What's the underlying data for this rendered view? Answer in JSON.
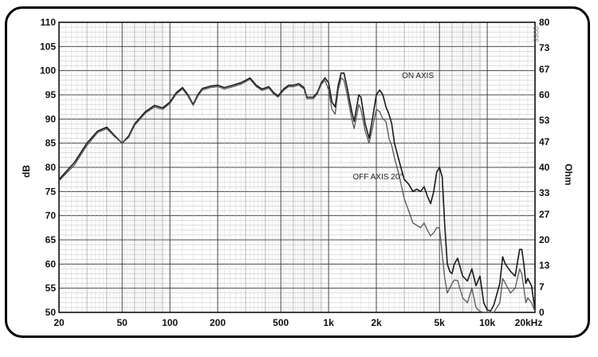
{
  "chart_data": {
    "type": "line",
    "x_scale": "log",
    "grid": true,
    "xlim": [
      20,
      20000
    ],
    "ylim": [
      50,
      110
    ],
    "y2lim": [
      0,
      80
    ],
    "ylabel": "dB",
    "y2label": "Ohm",
    "stamp": "0066",
    "x_ticks": [
      {
        "value": 20,
        "label": "20"
      },
      {
        "value": 50,
        "label": "50"
      },
      {
        "value": 100,
        "label": "100"
      },
      {
        "value": 200,
        "label": "200"
      },
      {
        "value": 500,
        "label": "500"
      },
      {
        "value": 1000,
        "label": "1k"
      },
      {
        "value": 2000,
        "label": "2k"
      },
      {
        "value": 5000,
        "label": "5k"
      },
      {
        "value": 10000,
        "label": "10k"
      },
      {
        "value": 20000,
        "label": "20kHz"
      }
    ],
    "y_ticks": [
      {
        "value": 110,
        "label": "110"
      },
      {
        "value": 105,
        "label": "105"
      },
      {
        "value": 100,
        "label": "100"
      },
      {
        "value": 95,
        "label": "95"
      },
      {
        "value": 90,
        "label": "90"
      },
      {
        "value": 85,
        "label": "85"
      },
      {
        "value": 80,
        "label": "80"
      },
      {
        "value": 75,
        "label": "75"
      },
      {
        "value": 70,
        "label": "70"
      },
      {
        "value": 65,
        "label": "65"
      },
      {
        "value": 60,
        "label": "60"
      },
      {
        "value": 55,
        "label": "55"
      },
      {
        "value": 50,
        "label": "50"
      }
    ],
    "y2_ticks": [
      {
        "value": 80,
        "label": "80"
      },
      {
        "value": 73,
        "label": "73"
      },
      {
        "value": 67,
        "label": "67"
      },
      {
        "value": 60,
        "label": "60"
      },
      {
        "value": 53,
        "label": "53"
      },
      {
        "value": 47,
        "label": "47"
      },
      {
        "value": 40,
        "label": "40"
      },
      {
        "value": 33,
        "label": "33"
      },
      {
        "value": 27,
        "label": "27"
      },
      {
        "value": 20,
        "label": "20"
      },
      {
        "value": 13,
        "label": "13"
      },
      {
        "value": 7,
        "label": "7"
      },
      {
        "value": 0,
        "label": "0"
      }
    ],
    "annotations": [
      {
        "text": "ON AXIS",
        "x": 2900,
        "y": 98.5
      },
      {
        "text": "OFF AXIS 20°",
        "x": 1420,
        "y": 77.5
      }
    ],
    "series": [
      {
        "key": "on_axis",
        "color": "#1a1a1a",
        "points": [
          [
            20,
            77.5
          ],
          [
            25,
            81
          ],
          [
            30,
            85
          ],
          [
            35,
            87.5
          ],
          [
            40,
            88.3
          ],
          [
            45,
            86.5
          ],
          [
            50,
            85
          ],
          [
            55,
            86.5
          ],
          [
            60,
            89
          ],
          [
            70,
            91.5
          ],
          [
            80,
            92.8
          ],
          [
            90,
            92.3
          ],
          [
            100,
            93.5
          ],
          [
            110,
            95.5
          ],
          [
            120,
            96.5
          ],
          [
            130,
            95
          ],
          [
            140,
            93
          ],
          [
            150,
            95
          ],
          [
            160,
            96.3
          ],
          [
            180,
            96.8
          ],
          [
            200,
            97
          ],
          [
            220,
            96.5
          ],
          [
            250,
            97
          ],
          [
            280,
            97.5
          ],
          [
            300,
            98
          ],
          [
            320,
            98.5
          ],
          [
            350,
            97
          ],
          [
            380,
            96.2
          ],
          [
            420,
            96.7
          ],
          [
            450,
            95.5
          ],
          [
            480,
            94.8
          ],
          [
            520,
            96.2
          ],
          [
            560,
            97
          ],
          [
            600,
            97
          ],
          [
            650,
            97.3
          ],
          [
            700,
            96.5
          ],
          [
            730,
            94.5
          ],
          [
            800,
            94.5
          ],
          [
            850,
            95.5
          ],
          [
            900,
            97.5
          ],
          [
            950,
            98.5
          ],
          [
            1000,
            97.5
          ],
          [
            1050,
            93.5
          ],
          [
            1100,
            92.5
          ],
          [
            1150,
            97
          ],
          [
            1200,
            99.5
          ],
          [
            1250,
            99.5
          ],
          [
            1300,
            97
          ],
          [
            1400,
            91.5
          ],
          [
            1450,
            89.5
          ],
          [
            1550,
            95
          ],
          [
            1600,
            94.5
          ],
          [
            1700,
            89
          ],
          [
            1800,
            86
          ],
          [
            1900,
            90.5
          ],
          [
            2000,
            95
          ],
          [
            2100,
            96
          ],
          [
            2200,
            95
          ],
          [
            2300,
            92.5
          ],
          [
            2400,
            91
          ],
          [
            2500,
            89
          ],
          [
            2600,
            85
          ],
          [
            2800,
            81
          ],
          [
            3000,
            77.5
          ],
          [
            3200,
            76.5
          ],
          [
            3400,
            75
          ],
          [
            3600,
            75.5
          ],
          [
            3800,
            75
          ],
          [
            4000,
            76
          ],
          [
            4200,
            74
          ],
          [
            4400,
            72.5
          ],
          [
            4600,
            75
          ],
          [
            4800,
            79
          ],
          [
            5000,
            80
          ],
          [
            5200,
            78
          ],
          [
            5400,
            68
          ],
          [
            5600,
            60
          ],
          [
            5800,
            58.5
          ],
          [
            6000,
            58
          ],
          [
            6200,
            60
          ],
          [
            6500,
            61.2
          ],
          [
            7000,
            57.5
          ],
          [
            7500,
            56.5
          ],
          [
            8000,
            59
          ],
          [
            8500,
            55.5
          ],
          [
            9000,
            57.5
          ],
          [
            9500,
            52
          ],
          [
            10000,
            50.5
          ],
          [
            10500,
            50.3
          ],
          [
            11000,
            51.5
          ],
          [
            12000,
            56
          ],
          [
            12500,
            61.5
          ],
          [
            13000,
            60
          ],
          [
            14000,
            58.5
          ],
          [
            15000,
            57.5
          ],
          [
            16000,
            63
          ],
          [
            16500,
            63
          ],
          [
            17000,
            60
          ],
          [
            17500,
            56
          ],
          [
            18000,
            57
          ],
          [
            19000,
            55.5
          ],
          [
            20000,
            50.5
          ]
        ]
      },
      {
        "key": "off_axis_20",
        "color": "#555555",
        "points": [
          [
            20,
            77.2
          ],
          [
            25,
            80.5
          ],
          [
            30,
            84.5
          ],
          [
            35,
            87.2
          ],
          [
            40,
            88
          ],
          [
            45,
            86.3
          ],
          [
            50,
            85
          ],
          [
            55,
            86.2
          ],
          [
            60,
            88.7
          ],
          [
            70,
            91.2
          ],
          [
            80,
            92.5
          ],
          [
            90,
            92
          ],
          [
            100,
            93.2
          ],
          [
            110,
            95.2
          ],
          [
            120,
            96.2
          ],
          [
            130,
            94.7
          ],
          [
            140,
            92.8
          ],
          [
            150,
            94.7
          ],
          [
            160,
            96
          ],
          [
            180,
            96.5
          ],
          [
            200,
            96.7
          ],
          [
            220,
            96.2
          ],
          [
            250,
            96.7
          ],
          [
            280,
            97.2
          ],
          [
            300,
            97.7
          ],
          [
            320,
            98.2
          ],
          [
            350,
            96.7
          ],
          [
            380,
            95.9
          ],
          [
            420,
            96.4
          ],
          [
            450,
            95.2
          ],
          [
            480,
            94.5
          ],
          [
            520,
            95.9
          ],
          [
            560,
            96.7
          ],
          [
            600,
            96.7
          ],
          [
            650,
            97
          ],
          [
            700,
            96.2
          ],
          [
            730,
            94.2
          ],
          [
            800,
            94.2
          ],
          [
            850,
            95.2
          ],
          [
            900,
            97.2
          ],
          [
            950,
            98
          ],
          [
            1000,
            96
          ],
          [
            1050,
            92
          ],
          [
            1100,
            91
          ],
          [
            1150,
            96
          ],
          [
            1200,
            98.5
          ],
          [
            1250,
            98
          ],
          [
            1300,
            95.5
          ],
          [
            1400,
            90
          ],
          [
            1450,
            88
          ],
          [
            1550,
            93
          ],
          [
            1600,
            92
          ],
          [
            1700,
            87.5
          ],
          [
            1800,
            85
          ],
          [
            1900,
            88.5
          ],
          [
            2000,
            92
          ],
          [
            2100,
            91.5
          ],
          [
            2200,
            90
          ],
          [
            2300,
            89.5
          ],
          [
            2400,
            86
          ],
          [
            2500,
            84.5
          ],
          [
            2600,
            82
          ],
          [
            2800,
            78
          ],
          [
            3000,
            73.5
          ],
          [
            3200,
            71
          ],
          [
            3400,
            68.5
          ],
          [
            3600,
            68
          ],
          [
            3800,
            67.5
          ],
          [
            4000,
            68.5
          ],
          [
            4200,
            67
          ],
          [
            4400,
            65.8
          ],
          [
            4600,
            66.5
          ],
          [
            4800,
            67.5
          ],
          [
            5000,
            67.5
          ],
          [
            5200,
            62
          ],
          [
            5400,
            57
          ],
          [
            5600,
            54
          ],
          [
            5800,
            55
          ],
          [
            6000,
            56
          ],
          [
            6200,
            56.7
          ],
          [
            6500,
            56.6
          ],
          [
            7000,
            53
          ],
          [
            7500,
            52
          ],
          [
            8000,
            55
          ],
          [
            8500,
            51
          ],
          [
            9000,
            50.2
          ],
          [
            9500,
            50
          ],
          [
            10000,
            50
          ],
          [
            11000,
            50
          ],
          [
            12000,
            52
          ],
          [
            12500,
            57
          ],
          [
            13000,
            56
          ],
          [
            14000,
            54
          ],
          [
            15000,
            55
          ],
          [
            16000,
            59
          ],
          [
            16500,
            58
          ],
          [
            17000,
            55
          ],
          [
            17500,
            52
          ],
          [
            18000,
            53
          ],
          [
            19000,
            52
          ],
          [
            20000,
            50.2
          ]
        ]
      }
    ]
  }
}
